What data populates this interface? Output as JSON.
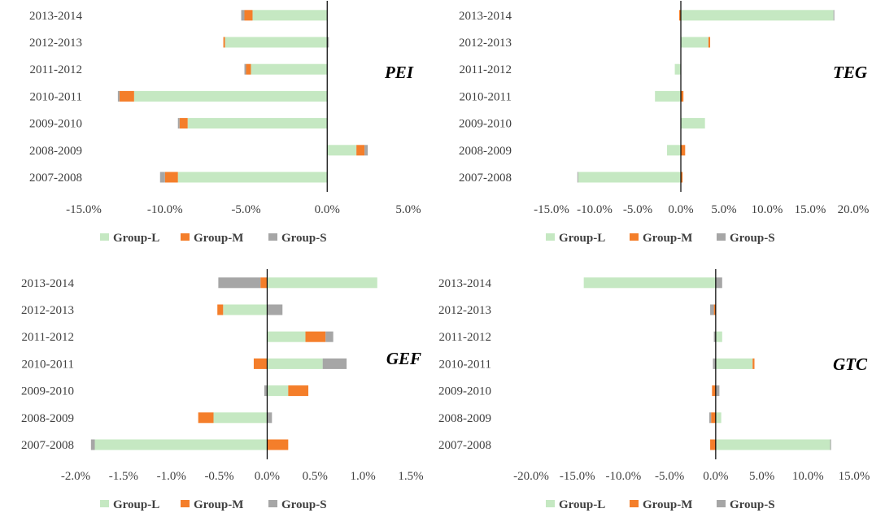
{
  "chart_data": [
    {
      "type": "bar",
      "orientation": "horizontal",
      "stacking": "diverging-stacked",
      "title": "PEI",
      "categories": [
        "2007-2008",
        "2008-2009",
        "2009-2010",
        "2010-2011",
        "2011-2012",
        "2012-2013",
        "2013-2014"
      ],
      "series": [
        {
          "name": "Group-L",
          "values": [
            -9.2,
            1.8,
            -8.6,
            -11.9,
            -4.7,
            -6.3,
            -4.6
          ]
        },
        {
          "name": "Group-M",
          "values": [
            -0.8,
            0.5,
            -0.5,
            -0.9,
            -0.3,
            -0.1,
            -0.5
          ]
        },
        {
          "name": "Group-S",
          "values": [
            -0.3,
            0.2,
            -0.1,
            -0.1,
            -0.1,
            0.1,
            -0.2
          ]
        }
      ],
      "xlim": [
        -15,
        5
      ],
      "xticks": [
        -15,
        -10,
        -5,
        0,
        5
      ],
      "tick_labels": [
        "-15.0%",
        "-10.0%",
        "-5.0%",
        "0.0%",
        "5.0%"
      ]
    },
    {
      "type": "bar",
      "orientation": "horizontal",
      "stacking": "diverging-stacked",
      "title": "TEG",
      "categories": [
        "2007-2008",
        "2008-2009",
        "2009-2010",
        "2010-2011",
        "2011-2012",
        "2012-2013",
        "2013-2014"
      ],
      "series": [
        {
          "name": "Group-L",
          "values": [
            -11.9,
            -1.6,
            2.8,
            -3.0,
            -0.7,
            3.2,
            17.7
          ]
        },
        {
          "name": "Group-M",
          "values": [
            0.2,
            0.5,
            0.0,
            0.3,
            0.0,
            0.2,
            -0.2
          ]
        },
        {
          "name": "Group-S",
          "values": [
            -0.1,
            0.0,
            0.0,
            0.0,
            0.0,
            0.0,
            0.1
          ]
        }
      ],
      "xlim": [
        -15,
        20
      ],
      "xticks": [
        -15,
        -10,
        -5,
        0,
        5,
        10,
        15,
        20
      ],
      "tick_labels": [
        "-15.0%",
        "-10.0%",
        "-5.0%",
        "0.0%",
        "5.0%",
        "10.0%",
        "15.0%",
        "20.0%"
      ]
    },
    {
      "type": "bar",
      "orientation": "horizontal",
      "stacking": "diverging-stacked",
      "title": "GEF",
      "categories": [
        "2007-2008",
        "2008-2009",
        "2009-2010",
        "2010-2011",
        "2011-2012",
        "2012-2013",
        "2013-2014"
      ],
      "series": [
        {
          "name": "Group-L",
          "values": [
            -1.8,
            -0.56,
            0.22,
            0.58,
            0.4,
            -0.46,
            1.15
          ]
        },
        {
          "name": "Group-M",
          "values": [
            0.22,
            -0.16,
            0.21,
            -0.14,
            0.21,
            -0.06,
            -0.07
          ]
        },
        {
          "name": "Group-S",
          "values": [
            -0.04,
            0.05,
            -0.03,
            0.25,
            0.08,
            0.16,
            -0.44
          ]
        }
      ],
      "xlim": [
        -2.0,
        1.5
      ],
      "xticks": [
        -2.0,
        -1.5,
        -1.0,
        -0.5,
        0.0,
        0.5,
        1.0,
        1.5
      ],
      "tick_labels": [
        "-2.0%",
        "-1.5%",
        "-1.0%",
        "-0.5%",
        "0.0%",
        "0.5%",
        "1.0%",
        "1.5%"
      ]
    },
    {
      "type": "bar",
      "orientation": "horizontal",
      "stacking": "diverging-stacked",
      "title": "GTC",
      "categories": [
        "2007-2008",
        "2008-2009",
        "2009-2010",
        "2010-2011",
        "2011-2012",
        "2012-2013",
        "2013-2014"
      ],
      "series": [
        {
          "name": "Group-L",
          "values": [
            12.4,
            0.6,
            0.0,
            4.0,
            0.7,
            0.0,
            -14.3
          ]
        },
        {
          "name": "Group-M",
          "values": [
            -0.6,
            -0.5,
            -0.4,
            0.2,
            0.0,
            -0.2,
            0.0
          ]
        },
        {
          "name": "Group-S",
          "values": [
            0.1,
            -0.2,
            0.4,
            -0.3,
            -0.2,
            -0.4,
            0.7
          ]
        }
      ],
      "xlim": [
        -20,
        15
      ],
      "xticks": [
        -20,
        -15,
        -10,
        -5,
        0,
        5,
        10,
        15
      ],
      "tick_labels": [
        "-20.0%",
        "-15.0%",
        "-10.0%",
        "-5.0%",
        "0.0%",
        "5.0%",
        "10.0%",
        "15.0%"
      ]
    }
  ],
  "legend": {
    "entries": [
      "Group-L",
      "Group-M",
      "Group-S"
    ],
    "position": "bottom"
  },
  "colors": {
    "Group-L": "#C5E8C2",
    "Group-M": "#F47E2A",
    "Group-S": "#A6A6A6",
    "axis": "#000000",
    "text": "#404040"
  }
}
